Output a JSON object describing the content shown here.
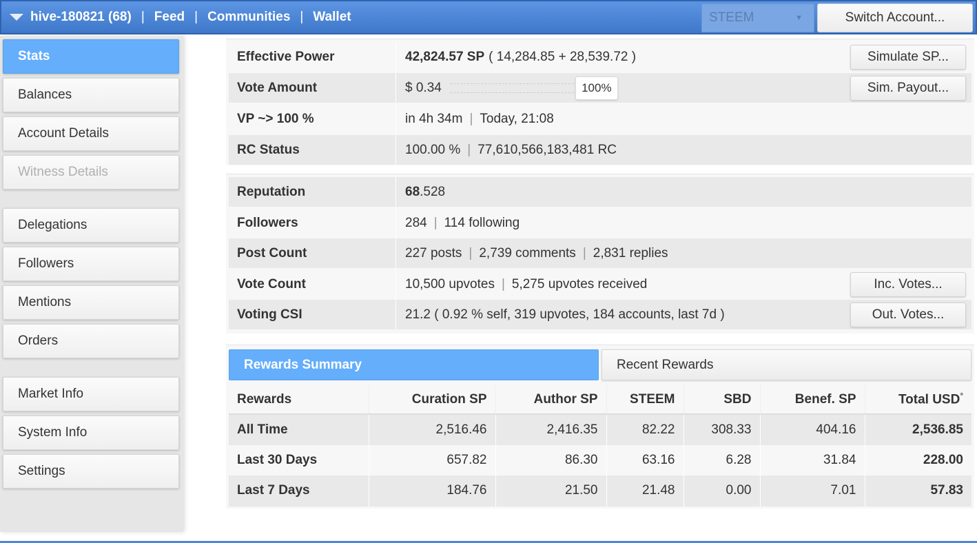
{
  "header": {
    "account": "hive-180821 (68)",
    "nav": [
      "Feed",
      "Communities",
      "Wallet"
    ],
    "separator": "|",
    "chain": "STEEM",
    "switch_label": "Switch Account..."
  },
  "sidebar": {
    "items": [
      {
        "label": "Stats"
      },
      {
        "label": "Balances"
      },
      {
        "label": "Account Details"
      },
      {
        "label": "Witness Details"
      },
      {
        "label": "Delegations"
      },
      {
        "label": "Followers"
      },
      {
        "label": "Mentions"
      },
      {
        "label": "Orders"
      },
      {
        "label": "Market Info"
      },
      {
        "label": "System Info"
      },
      {
        "label": "Settings"
      }
    ]
  },
  "stats": {
    "effective_power": {
      "label": "Effective Power",
      "value": "42,824.57 SP",
      "detail": "( 14,284.85 + 28,539.72 )",
      "button": "Simulate SP..."
    },
    "vote_amount": {
      "label": "Vote Amount",
      "value": "$ 0.34",
      "percent": "100%",
      "button": "Sim. Payout..."
    },
    "vp": {
      "label": "VP ~> 100 %",
      "value": "in 4h 34m",
      "value2": "Today, 21:08"
    },
    "rc": {
      "label": "RC Status",
      "value": "100.00 %",
      "value2": "77,610,566,183,481 RC"
    }
  },
  "social": {
    "reputation": {
      "label": "Reputation",
      "whole": "68",
      "frac": ".528"
    },
    "followers": {
      "label": "Followers",
      "value": "284",
      "value2": "114 following"
    },
    "post_count": {
      "label": "Post Count",
      "value": "227 posts",
      "value2": "2,739 comments",
      "value3": "2,831 replies"
    },
    "vote_count": {
      "label": "Vote Count",
      "value": "10,500 upvotes",
      "value2": "5,275 upvotes received",
      "button": "Inc. Votes..."
    },
    "voting_csi": {
      "label": "Voting CSI",
      "value": "21.2 ( 0.92 % self, 319 upvotes, 184 accounts, last 7d )",
      "button": "Out. Votes..."
    }
  },
  "tabs": {
    "rewards_summary": "Rewards Summary",
    "recent_rewards": "Recent Rewards"
  },
  "rewards_table": {
    "headers": [
      "Rewards",
      "Curation SP",
      "Author SP",
      "STEEM",
      "SBD",
      "Benef. SP",
      "Total USD"
    ],
    "total_marker": "*",
    "rows": [
      [
        "All Time",
        "2,516.46",
        "2,416.35",
        "82.22",
        "308.33",
        "404.16",
        "2,536.85"
      ],
      [
        "Last 30 Days",
        "657.82",
        "86.30",
        "63.16",
        "6.28",
        "31.84",
        "228.00"
      ],
      [
        "Last 7 Days",
        "184.76",
        "21.50",
        "21.48",
        "0.00",
        "7.01",
        "57.83"
      ]
    ]
  }
}
